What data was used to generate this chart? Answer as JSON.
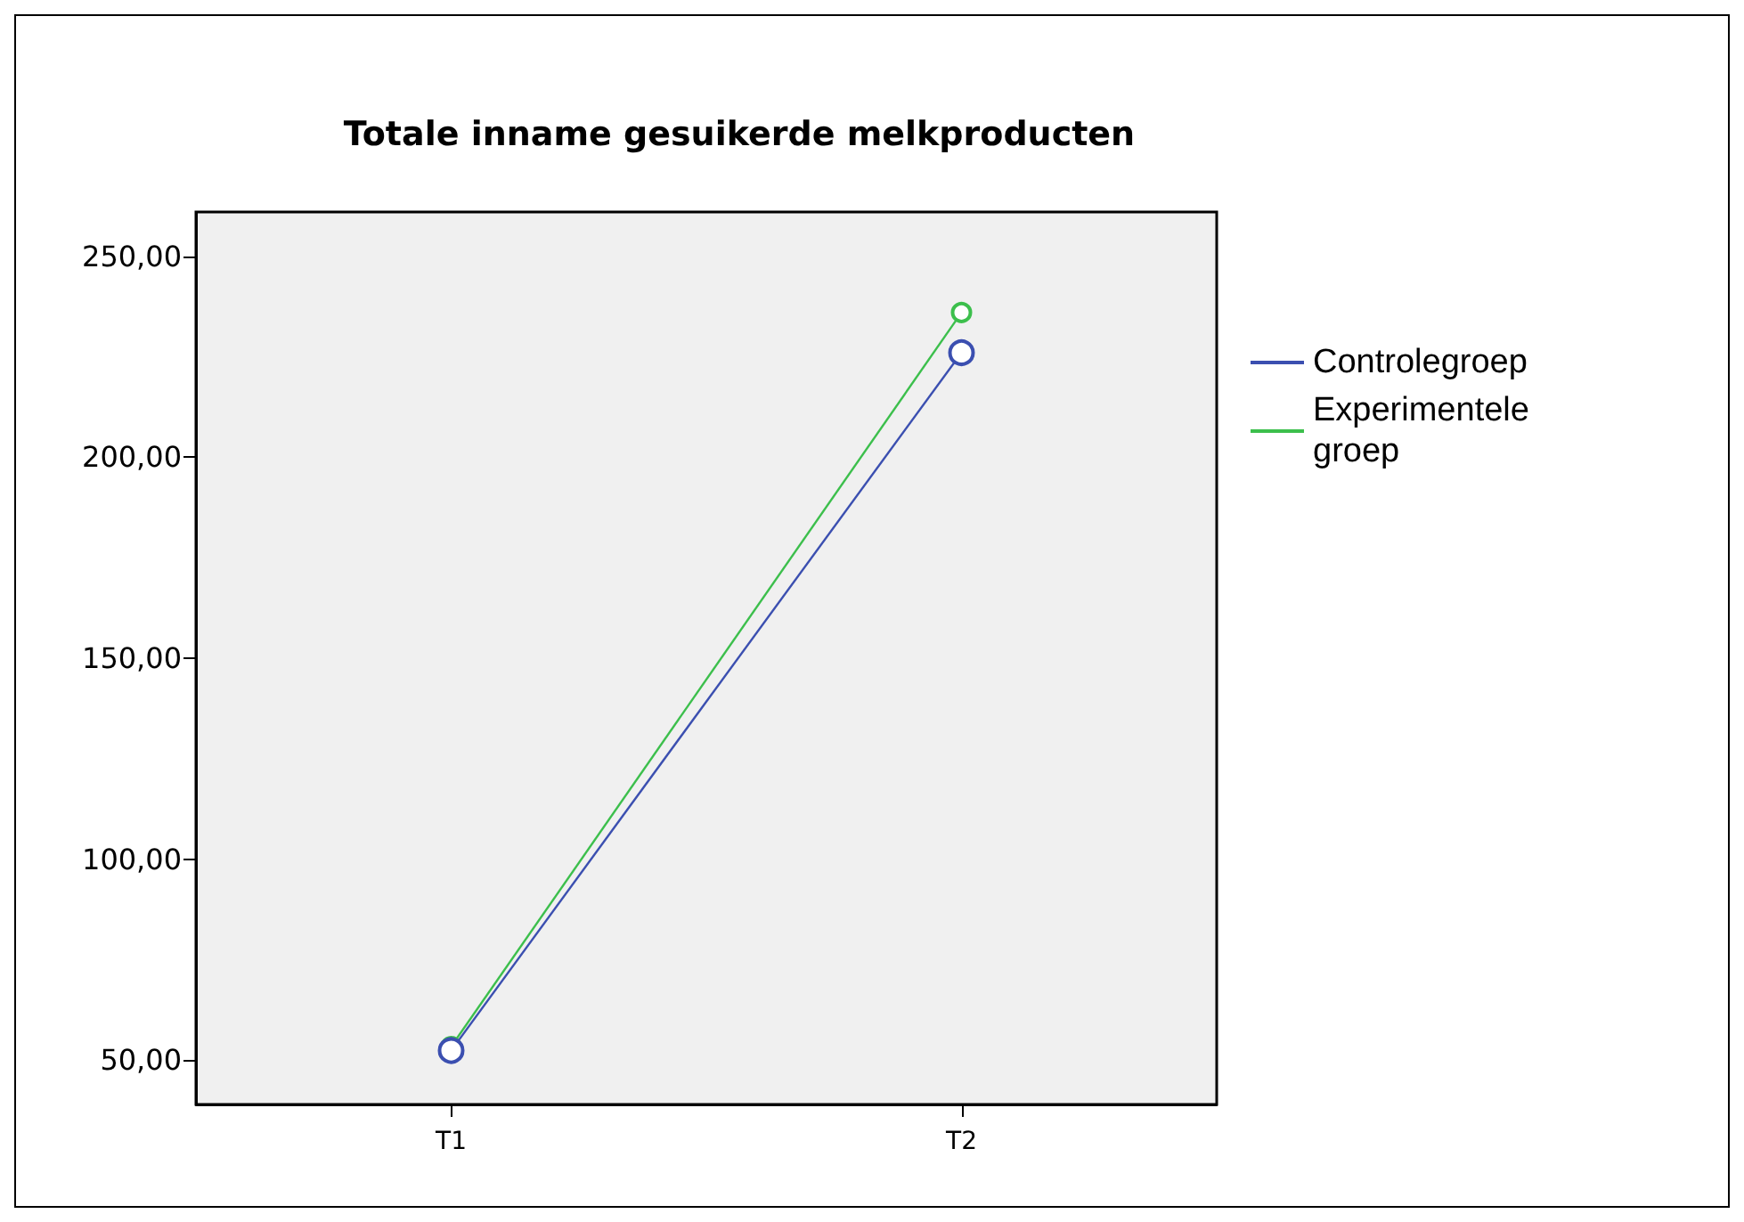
{
  "chart_data": {
    "type": "line",
    "title": "Totale inname gesuikerde melkproducten",
    "categories": [
      "T1",
      "T2"
    ],
    "series": [
      {
        "name": "Controlegroep",
        "color": "#3b4fb0",
        "values": [
          52.4,
          226
        ]
      },
      {
        "name": "Experimentele groep",
        "color": "#3cbf4c",
        "values": [
          53.4,
          236
        ]
      }
    ],
    "ylim": [
      39,
      261
    ],
    "yticks": [
      {
        "value": 50,
        "label": "50,00"
      },
      {
        "value": 100,
        "label": "100,00"
      },
      {
        "value": 150,
        "label": "150,00"
      },
      {
        "value": 200,
        "label": "200,00"
      },
      {
        "value": 250,
        "label": "250,00"
      }
    ],
    "grid": false,
    "legend": "right",
    "marker": "circle",
    "line_style": "solid"
  }
}
